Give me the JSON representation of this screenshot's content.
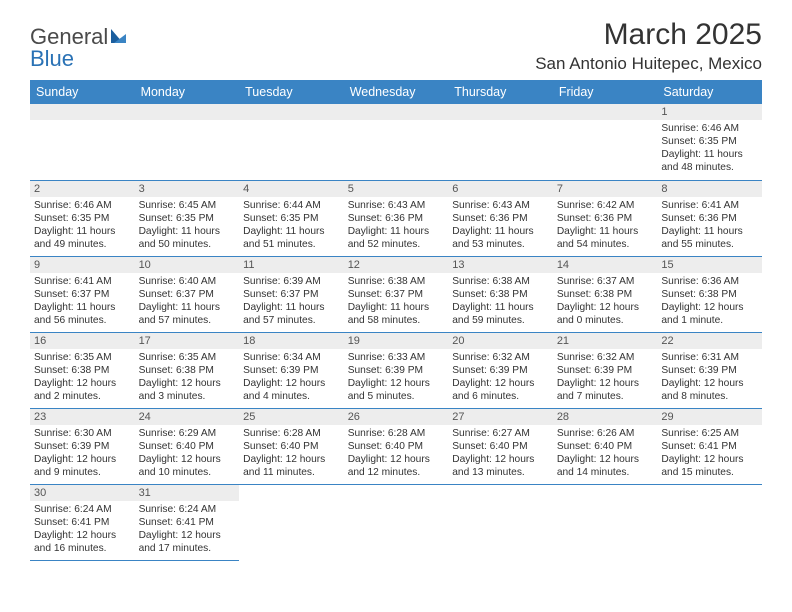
{
  "brand": {
    "part1": "General",
    "part2": "Blue"
  },
  "title": "March 2025",
  "location": "San Antonio Huitepec, Mexico",
  "colors": {
    "header_bg": "#3a84c4",
    "header_text": "#ffffff",
    "daynum_bg": "#ededed",
    "rule": "#3a84c4",
    "text": "#333333"
  },
  "dayNames": [
    "Sunday",
    "Monday",
    "Tuesday",
    "Wednesday",
    "Thursday",
    "Friday",
    "Saturday"
  ],
  "weeks": [
    [
      null,
      null,
      null,
      null,
      null,
      null,
      {
        "n": "1",
        "sunrise": "Sunrise: 6:46 AM",
        "sunset": "Sunset: 6:35 PM",
        "daylight": "Daylight: 11 hours and 48 minutes."
      }
    ],
    [
      {
        "n": "2",
        "sunrise": "Sunrise: 6:46 AM",
        "sunset": "Sunset: 6:35 PM",
        "daylight": "Daylight: 11 hours and 49 minutes."
      },
      {
        "n": "3",
        "sunrise": "Sunrise: 6:45 AM",
        "sunset": "Sunset: 6:35 PM",
        "daylight": "Daylight: 11 hours and 50 minutes."
      },
      {
        "n": "4",
        "sunrise": "Sunrise: 6:44 AM",
        "sunset": "Sunset: 6:35 PM",
        "daylight": "Daylight: 11 hours and 51 minutes."
      },
      {
        "n": "5",
        "sunrise": "Sunrise: 6:43 AM",
        "sunset": "Sunset: 6:36 PM",
        "daylight": "Daylight: 11 hours and 52 minutes."
      },
      {
        "n": "6",
        "sunrise": "Sunrise: 6:43 AM",
        "sunset": "Sunset: 6:36 PM",
        "daylight": "Daylight: 11 hours and 53 minutes."
      },
      {
        "n": "7",
        "sunrise": "Sunrise: 6:42 AM",
        "sunset": "Sunset: 6:36 PM",
        "daylight": "Daylight: 11 hours and 54 minutes."
      },
      {
        "n": "8",
        "sunrise": "Sunrise: 6:41 AM",
        "sunset": "Sunset: 6:36 PM",
        "daylight": "Daylight: 11 hours and 55 minutes."
      }
    ],
    [
      {
        "n": "9",
        "sunrise": "Sunrise: 6:41 AM",
        "sunset": "Sunset: 6:37 PM",
        "daylight": "Daylight: 11 hours and 56 minutes."
      },
      {
        "n": "10",
        "sunrise": "Sunrise: 6:40 AM",
        "sunset": "Sunset: 6:37 PM",
        "daylight": "Daylight: 11 hours and 57 minutes."
      },
      {
        "n": "11",
        "sunrise": "Sunrise: 6:39 AM",
        "sunset": "Sunset: 6:37 PM",
        "daylight": "Daylight: 11 hours and 57 minutes."
      },
      {
        "n": "12",
        "sunrise": "Sunrise: 6:38 AM",
        "sunset": "Sunset: 6:37 PM",
        "daylight": "Daylight: 11 hours and 58 minutes."
      },
      {
        "n": "13",
        "sunrise": "Sunrise: 6:38 AM",
        "sunset": "Sunset: 6:38 PM",
        "daylight": "Daylight: 11 hours and 59 minutes."
      },
      {
        "n": "14",
        "sunrise": "Sunrise: 6:37 AM",
        "sunset": "Sunset: 6:38 PM",
        "daylight": "Daylight: 12 hours and 0 minutes."
      },
      {
        "n": "15",
        "sunrise": "Sunrise: 6:36 AM",
        "sunset": "Sunset: 6:38 PM",
        "daylight": "Daylight: 12 hours and 1 minute."
      }
    ],
    [
      {
        "n": "16",
        "sunrise": "Sunrise: 6:35 AM",
        "sunset": "Sunset: 6:38 PM",
        "daylight": "Daylight: 12 hours and 2 minutes."
      },
      {
        "n": "17",
        "sunrise": "Sunrise: 6:35 AM",
        "sunset": "Sunset: 6:38 PM",
        "daylight": "Daylight: 12 hours and 3 minutes."
      },
      {
        "n": "18",
        "sunrise": "Sunrise: 6:34 AM",
        "sunset": "Sunset: 6:39 PM",
        "daylight": "Daylight: 12 hours and 4 minutes."
      },
      {
        "n": "19",
        "sunrise": "Sunrise: 6:33 AM",
        "sunset": "Sunset: 6:39 PM",
        "daylight": "Daylight: 12 hours and 5 minutes."
      },
      {
        "n": "20",
        "sunrise": "Sunrise: 6:32 AM",
        "sunset": "Sunset: 6:39 PM",
        "daylight": "Daylight: 12 hours and 6 minutes."
      },
      {
        "n": "21",
        "sunrise": "Sunrise: 6:32 AM",
        "sunset": "Sunset: 6:39 PM",
        "daylight": "Daylight: 12 hours and 7 minutes."
      },
      {
        "n": "22",
        "sunrise": "Sunrise: 6:31 AM",
        "sunset": "Sunset: 6:39 PM",
        "daylight": "Daylight: 12 hours and 8 minutes."
      }
    ],
    [
      {
        "n": "23",
        "sunrise": "Sunrise: 6:30 AM",
        "sunset": "Sunset: 6:39 PM",
        "daylight": "Daylight: 12 hours and 9 minutes."
      },
      {
        "n": "24",
        "sunrise": "Sunrise: 6:29 AM",
        "sunset": "Sunset: 6:40 PM",
        "daylight": "Daylight: 12 hours and 10 minutes."
      },
      {
        "n": "25",
        "sunrise": "Sunrise: 6:28 AM",
        "sunset": "Sunset: 6:40 PM",
        "daylight": "Daylight: 12 hours and 11 minutes."
      },
      {
        "n": "26",
        "sunrise": "Sunrise: 6:28 AM",
        "sunset": "Sunset: 6:40 PM",
        "daylight": "Daylight: 12 hours and 12 minutes."
      },
      {
        "n": "27",
        "sunrise": "Sunrise: 6:27 AM",
        "sunset": "Sunset: 6:40 PM",
        "daylight": "Daylight: 12 hours and 13 minutes."
      },
      {
        "n": "28",
        "sunrise": "Sunrise: 6:26 AM",
        "sunset": "Sunset: 6:40 PM",
        "daylight": "Daylight: 12 hours and 14 minutes."
      },
      {
        "n": "29",
        "sunrise": "Sunrise: 6:25 AM",
        "sunset": "Sunset: 6:41 PM",
        "daylight": "Daylight: 12 hours and 15 minutes."
      }
    ],
    [
      {
        "n": "30",
        "sunrise": "Sunrise: 6:24 AM",
        "sunset": "Sunset: 6:41 PM",
        "daylight": "Daylight: 12 hours and 16 minutes."
      },
      {
        "n": "31",
        "sunrise": "Sunrise: 6:24 AM",
        "sunset": "Sunset: 6:41 PM",
        "daylight": "Daylight: 12 hours and 17 minutes."
      },
      null,
      null,
      null,
      null,
      null
    ]
  ]
}
